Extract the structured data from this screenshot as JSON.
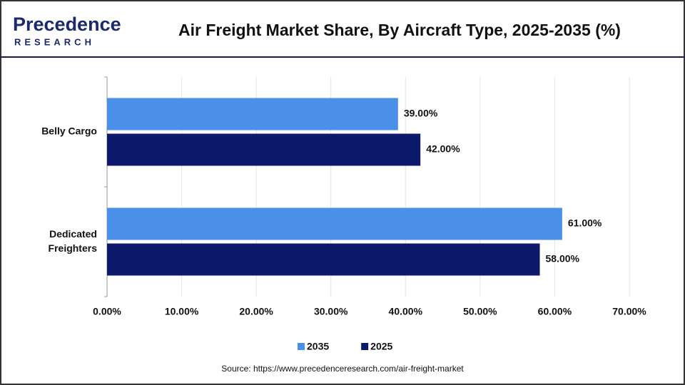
{
  "chart_data": {
    "type": "hbar",
    "title": "Air Freight Market Share, By Aircraft Type, 2025-2035 (%)",
    "logo": {
      "name": "Precedence",
      "tagline": "RESEARCH"
    },
    "source": "Source: https://www.precedenceresearch.com/air-freight-market",
    "categories": [
      "Belly Cargo",
      "Dedicated Freighters"
    ],
    "series": [
      {
        "name": "2035",
        "color": "#4a90e8",
        "values": [
          39,
          61
        ],
        "value_labels": [
          "39.00%",
          "61.00%"
        ]
      },
      {
        "name": "2025",
        "color": "#0d1a6b",
        "values": [
          42,
          58
        ],
        "value_labels": [
          "42.00%",
          "58.00%"
        ]
      }
    ],
    "xlim": [
      0,
      70
    ],
    "xticks": [
      {
        "value": 0,
        "label": "0.00%"
      },
      {
        "value": 10,
        "label": "10.00%"
      },
      {
        "value": 20,
        "label": "20.00%"
      },
      {
        "value": 30,
        "label": "30.00%"
      },
      {
        "value": 40,
        "label": "40.00%"
      },
      {
        "value": 50,
        "label": "50.00%"
      },
      {
        "value": 60,
        "label": "60.00%"
      },
      {
        "value": 70,
        "label": "70.00%"
      }
    ],
    "grid": true
  }
}
